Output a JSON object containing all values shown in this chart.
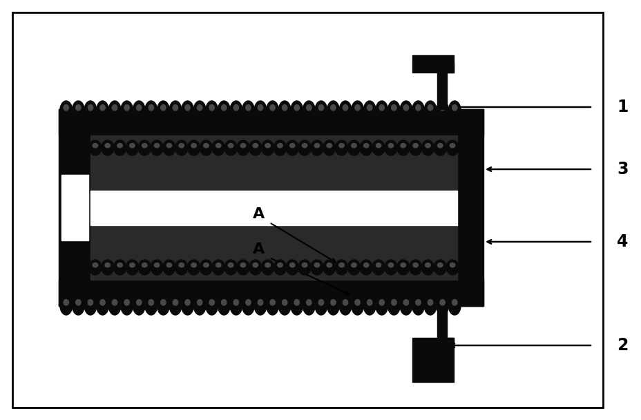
{
  "bg_color": "#ffffff",
  "border_color": "#000000",
  "black": "#0a0a0a",
  "dark_gray": "#2a2a2a",
  "fig_width": 9.29,
  "fig_height": 6.08,
  "label_1": "1",
  "label_2": "2",
  "label_3": "3",
  "label_4": "4",
  "label_A": "A",
  "coil_highlight": "#555555"
}
